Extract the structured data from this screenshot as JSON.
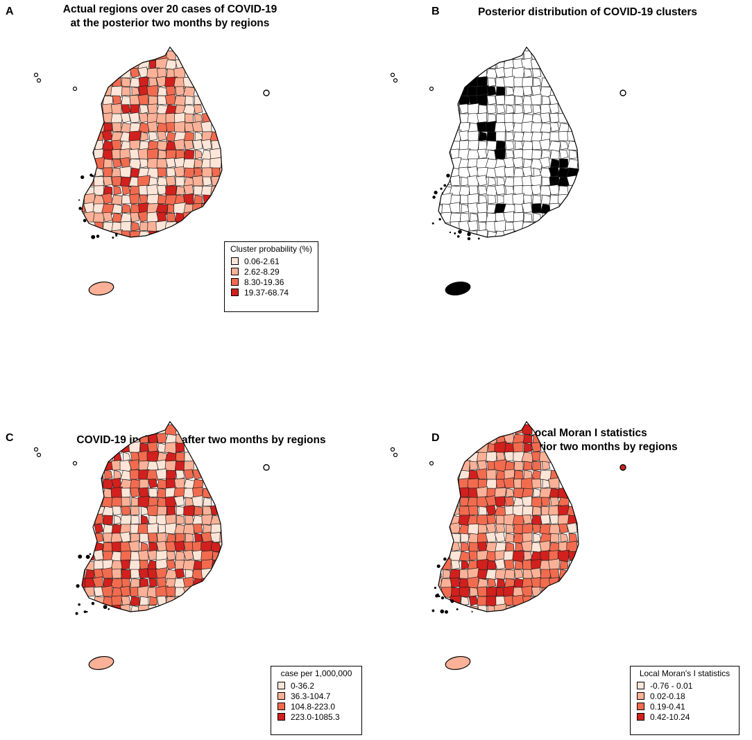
{
  "panels": [
    {
      "letter": "A",
      "title": "Actual regions over 20 cases of COVID-19\nat the posterior two months by regions",
      "legend": {
        "title": "Cluster probability (%)",
        "items": [
          {
            "label": "0.06-2.61",
            "color": "#fde5d8"
          },
          {
            "label": "2.62-8.29",
            "color": "#fbb197"
          },
          {
            "label": "8.30-19.36",
            "color": "#f26b4f"
          },
          {
            "label": "19.37-68.74",
            "color": "#d1201d"
          }
        ]
      }
    },
    {
      "letter": "B",
      "title": "Posterior distribution of COVID-19 clusters",
      "legend": null
    },
    {
      "letter": "C",
      "title": "COVID-19 incidence after two months by regions",
      "legend": {
        "title": "case per 1,000,000",
        "items": [
          {
            "label": "0-36.2",
            "color": "#fde5d8"
          },
          {
            "label": "36.3-104.7",
            "color": "#fbb197"
          },
          {
            "label": "104.8-223.0",
            "color": "#f26b4f"
          },
          {
            "label": "223.0-1085.3",
            "color": "#d1201d"
          }
        ]
      }
    },
    {
      "letter": "D",
      "title": "Local Moran I statistics\nat posterior two months by regions",
      "legend": {
        "title": "Local Moran's I statistics",
        "items": [
          {
            "label": "-0.76 - 0.01",
            "color": "#fde5d8"
          },
          {
            "label": "0.02-0.18",
            "color": "#fbb197"
          },
          {
            "label": "0.19-0.41",
            "color": "#f26b4f"
          },
          {
            "label": "0.42-10.24",
            "color": "#d1201d"
          }
        ]
      }
    }
  ],
  "palette": {
    "c1": "#fde5d8",
    "c2": "#fbb197",
    "c3": "#f26b4f",
    "c4": "#d1201d",
    "cluster": "#000000",
    "empty": "#ffffff"
  }
}
